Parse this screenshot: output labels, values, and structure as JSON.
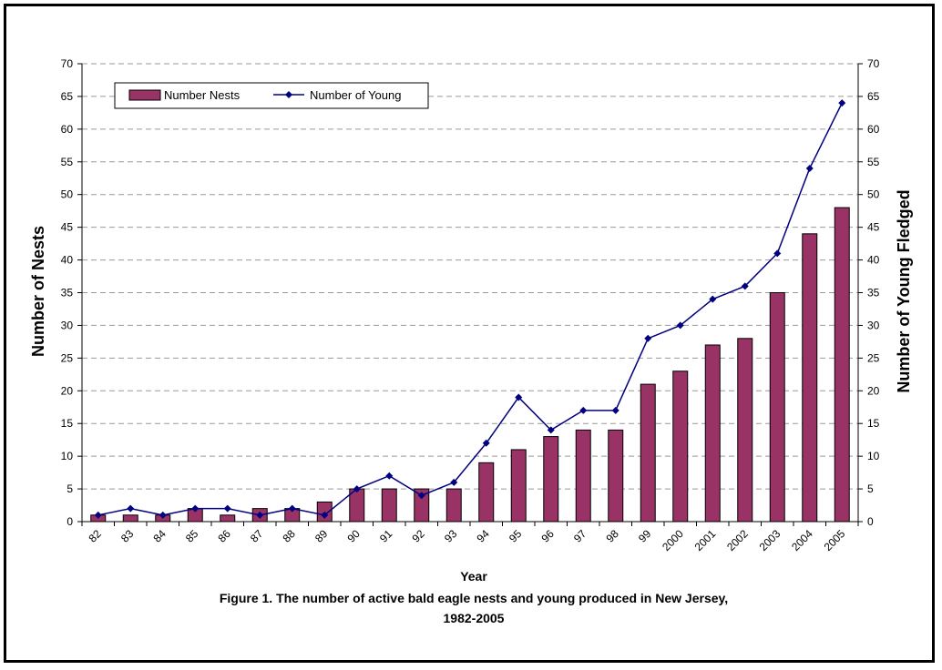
{
  "chart_data": {
    "type": "bar",
    "categories": [
      "82",
      "83",
      "84",
      "85",
      "86",
      "87",
      "88",
      "89",
      "90",
      "91",
      "92",
      "93",
      "94",
      "95",
      "96",
      "97",
      "98",
      "99",
      "2000",
      "2001",
      "2002",
      "2003",
      "2004",
      "2005"
    ],
    "series": [
      {
        "name": "Number Nests",
        "type": "bar",
        "axis": "left",
        "color": "#993366",
        "values": [
          1,
          1,
          1,
          2,
          1,
          2,
          2,
          3,
          5,
          5,
          5,
          5,
          9,
          11,
          13,
          14,
          14,
          21,
          23,
          27,
          28,
          35,
          44,
          48
        ]
      },
      {
        "name": "Number of Young",
        "type": "line",
        "axis": "right",
        "color": "#000080",
        "values": [
          1,
          2,
          1,
          2,
          2,
          1,
          2,
          1,
          5,
          7,
          4,
          6,
          12,
          19,
          14,
          17,
          17,
          28,
          30,
          34,
          36,
          41,
          54,
          64
        ]
      }
    ],
    "xlabel": "Year",
    "ylabel": "Number of Nests",
    "y2label": "Number of Young Fledged",
    "ylim": [
      0,
      70
    ],
    "y2lim": [
      0,
      70
    ],
    "yticks": [
      0,
      5,
      10,
      15,
      20,
      25,
      30,
      35,
      40,
      45,
      50,
      55,
      60,
      65,
      70
    ],
    "grid": "horizontal dashed",
    "legend": "top-left",
    "caption_line1": "Figure 1. The number of active bald eagle nests and young produced in New Jersey,",
    "caption_line2": "1982-2005"
  }
}
